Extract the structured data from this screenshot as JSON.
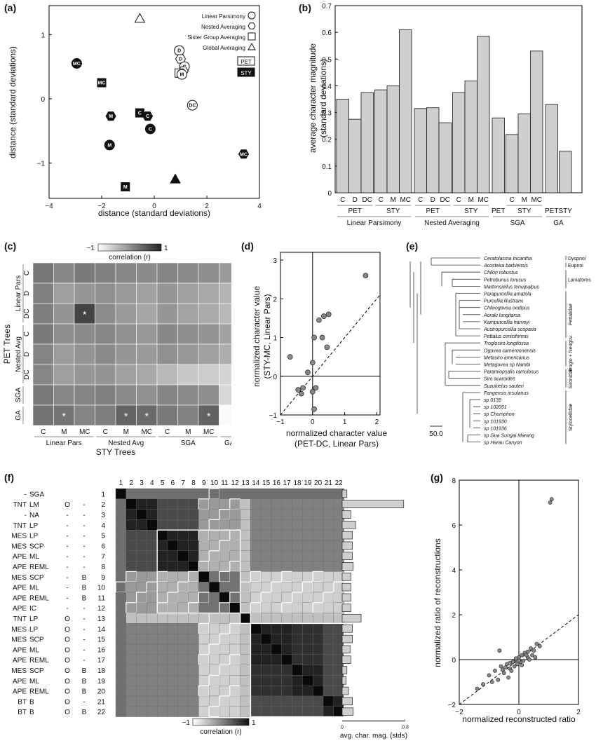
{
  "panels": {
    "a": {
      "label": "(a)",
      "xlabel": "distance (standard deviations)",
      "ylabel": "distance (standard deviations)",
      "xticks": [
        "−4",
        "−2",
        "0",
        "2",
        "4"
      ],
      "yticks": [
        "1",
        "0",
        "−1"
      ],
      "legend": [
        "Linear Parsimony",
        "Nested Averaging",
        "Sister Group Averaging",
        "Global Averaging"
      ],
      "box_labels": [
        "PET",
        "STY"
      ],
      "points": [
        {
          "x": -2.95,
          "y": 0.55,
          "shape": "circle",
          "fill": "black",
          "text": "MC"
        },
        {
          "x": -2.0,
          "y": 0.25,
          "shape": "square",
          "fill": "black",
          "text": "MC"
        },
        {
          "x": -1.65,
          "y": -0.27,
          "shape": "hex",
          "fill": "black",
          "text": "M"
        },
        {
          "x": -1.7,
          "y": -0.72,
          "shape": "circle",
          "fill": "black",
          "text": "M"
        },
        {
          "x": -1.1,
          "y": -1.37,
          "shape": "square",
          "fill": "black",
          "text": "M"
        },
        {
          "x": -0.55,
          "y": -0.22,
          "shape": "square",
          "fill": "black",
          "text": "C"
        },
        {
          "x": -0.25,
          "y": -0.27,
          "shape": "hex",
          "fill": "black",
          "text": "C"
        },
        {
          "x": -0.15,
          "y": -0.47,
          "shape": "circle",
          "fill": "black",
          "text": "C"
        },
        {
          "x": 3.4,
          "y": -0.86,
          "shape": "hex",
          "fill": "black",
          "text": "MC"
        },
        {
          "x": 0.8,
          "y": -1.25,
          "shape": "triangle",
          "fill": "black",
          "text": ""
        },
        {
          "x": -0.55,
          "y": 1.25,
          "shape": "triangle",
          "fill": "white",
          "text": ""
        },
        {
          "x": 0.95,
          "y": 0.75,
          "shape": "circle",
          "fill": "white",
          "text": "D"
        },
        {
          "x": 1.0,
          "y": 0.62,
          "shape": "hex",
          "fill": "white",
          "text": "D"
        },
        {
          "x": 1.15,
          "y": 0.5,
          "shape": "circle",
          "fill": "white",
          "text": "C"
        },
        {
          "x": 1.1,
          "y": 0.43,
          "shape": "hex",
          "fill": "white",
          "text": "C"
        },
        {
          "x": 0.95,
          "y": 0.4,
          "shape": "square",
          "fill": "white",
          "text": ""
        },
        {
          "x": 1.05,
          "y": 0.38,
          "shape": "circle",
          "fill": "white",
          "text": "M"
        },
        {
          "x": 1.45,
          "y": -0.1,
          "shape": "circle",
          "fill": "white",
          "text": "DC"
        }
      ]
    },
    "b": {
      "label": "(b)",
      "ylabel": "average character magnitude\n(standard deviations)",
      "yticks": [
        "0",
        "0.1",
        "0.2",
        "0.3",
        "0.4",
        "0.5",
        "0.6",
        "0.7"
      ],
      "chart_data": {
        "type": "bar",
        "categories": [
          "C",
          "D",
          "DC",
          "C",
          "M",
          "MC",
          "C",
          "D",
          "DC",
          "C",
          "M",
          "MC",
          "PET",
          "C",
          "M",
          "MC",
          "PET",
          "STY"
        ],
        "values": [
          0.35,
          0.275,
          0.375,
          0.385,
          0.4,
          0.61,
          0.315,
          0.318,
          0.262,
          0.375,
          0.418,
          0.585,
          0.28,
          0.218,
          0.295,
          0.53,
          0.33,
          0.155
        ],
        "ylim": [
          0,
          0.7
        ]
      },
      "group2": [
        {
          "label": "PET",
          "span": [
            0,
            2
          ]
        },
        {
          "label": "STY",
          "span": [
            3,
            5
          ]
        },
        {
          "label": "PET",
          "span": [
            6,
            8
          ]
        },
        {
          "label": "STY",
          "span": [
            9,
            11
          ]
        },
        {
          "label": "PET",
          "span": [
            12,
            12
          ]
        },
        {
          "label": "STY",
          "span": [
            13,
            15
          ]
        },
        {
          "label": "PET",
          "span": [
            16,
            16
          ]
        },
        {
          "label": "STY",
          "span": [
            17,
            17
          ]
        }
      ],
      "group1": [
        {
          "label": "Linear Parsimony",
          "span": [
            0,
            5
          ]
        },
        {
          "label": "Nested Averaging",
          "span": [
            6,
            11
          ]
        },
        {
          "label": "SGA",
          "span": [
            12,
            15
          ]
        },
        {
          "label": "GA",
          "span": [
            16,
            17
          ]
        }
      ]
    },
    "c": {
      "label": "(c)",
      "colorbar_min": "−1",
      "colorbar_max": "1",
      "colorbar_label": "correlation (r)",
      "row_sub": [
        "C",
        "D",
        "DC",
        "C",
        "D",
        "DC",
        "",
        ""
      ],
      "row_groups": [
        "Linear Pars",
        "Nested Avg",
        "SGA",
        "GA"
      ],
      "row_title": "PET Trees",
      "col_sub": [
        "C",
        "M",
        "MC",
        "C",
        "M",
        "MC",
        "C",
        "M",
        "MC",
        ""
      ],
      "col_groups": [
        "Linear Pars",
        "Nested Avg",
        "SGA",
        "GA"
      ],
      "col_title": "STY Trees"
    },
    "d": {
      "label": "(d)",
      "xlabel": "normalized character value",
      "xlabel2": "(PET-DC, Linear Pars)",
      "ylabel": "normalized character value",
      "ylabel2": "(STY-MC, Linear Pars)",
      "xticks": [
        "−1",
        "0",
        "1",
        "2"
      ],
      "yticks": [
        "−1",
        "0",
        "1",
        "2",
        "3"
      ],
      "chart_data": {
        "type": "scatter",
        "x": [
          1.65,
          0.5,
          0.35,
          0.2,
          0.05,
          0.3,
          0.45,
          -0.7,
          0.0,
          -0.15,
          -0.3,
          -0.45,
          0.0,
          0.1,
          -0.35,
          0.05
        ],
        "y": [
          2.6,
          1.6,
          1.55,
          1.45,
          1.0,
          1.0,
          0.75,
          0.5,
          0.35,
          0.1,
          -0.3,
          -0.35,
          -0.4,
          -0.3,
          -0.45,
          -0.85
        ],
        "xlim": [
          -1,
          2.1
        ],
        "ylim": [
          -1,
          3.2
        ]
      }
    },
    "e": {
      "label": "(e)",
      "scale": "50.0",
      "taxa": [
        "Ceratolasma tricantha",
        "Acosteira barbiensis",
        "Chilon robustus",
        "Petrobunus lorusus",
        "Martensiellus tenuipalpus",
        "Parapurcellia amatola",
        "Purcellia illustrans",
        "Chileogovea oedipus",
        "Aoraki longitarsa",
        "Karripurcellia harveyi",
        "Austropurcellia scoparia",
        "Pettalus cimiciformis",
        "Troglosiro longifossa",
        "Ogovea cameroonensis",
        "Metasiro americanus",
        "Metagovea sp Nambi",
        "Paramiopsalis ramulosus",
        "Siro acaroides",
        "Suzukielus sauteri",
        "Fangensis insulanus",
        "sp 0139",
        "sp 102051",
        "sp Chumphon",
        "sp 101930",
        "sp 101936",
        "sp Gua Sungai Marang",
        "sp Harau Canyon"
      ],
      "clades": [
        "Dyspnoi",
        "Eupnoi",
        "Laniatores",
        "Pettalidae",
        "Troglo +\nNeogov.",
        "Sironidae",
        "Stylocellidae"
      ]
    },
    "f": {
      "label": "(f)",
      "col_numbers": [
        "1",
        "2",
        "3",
        "4",
        "5",
        "6",
        "7",
        "8",
        "9",
        "10",
        "11",
        "12",
        "13",
        "14",
        "15",
        "16",
        "17",
        "18",
        "19",
        "20",
        "21",
        "22"
      ],
      "rows": [
        {
          "a": "-",
          "b": "SGA",
          "c": "",
          "d": "",
          "e": "",
          "n": "1",
          "bar": 0.06
        },
        {
          "a": "TNT",
          "b": "LM",
          "c": "O",
          "d": "-",
          "e": "",
          "n": "2",
          "bar": 0.78
        },
        {
          "a": "-",
          "b": "NA",
          "c": "-",
          "d": "-",
          "e": "",
          "n": "3",
          "bar": 0.11
        },
        {
          "a": "TNT",
          "b": "LP",
          "c": "-",
          "d": "-",
          "e": "",
          "n": "4",
          "bar": 0.17
        },
        {
          "a": "MES",
          "b": "LP",
          "c": "-",
          "d": "-",
          "e": "",
          "n": "5",
          "bar": 0.13
        },
        {
          "a": "MES",
          "b": "SCP",
          "c": "-",
          "d": "-",
          "e": "",
          "n": "6",
          "bar": 0.13
        },
        {
          "a": "APE",
          "b": "ML",
          "c": "-",
          "d": "-",
          "e": "",
          "n": "7",
          "bar": 0.13
        },
        {
          "a": "APE",
          "b": "REML",
          "c": "-",
          "d": "-",
          "e": "",
          "n": "8",
          "bar": 0.14
        },
        {
          "a": "MES",
          "b": "SCP",
          "c": "-",
          "d": "B",
          "e": "",
          "n": "9",
          "bar": 0.11
        },
        {
          "a": "APE",
          "b": "ML",
          "c": "-",
          "d": "B",
          "e": "",
          "n": "10",
          "bar": 0.11
        },
        {
          "a": "APE",
          "b": "REML",
          "c": "-",
          "d": "B",
          "e": "",
          "n": "11",
          "bar": 0.11
        },
        {
          "a": "APE",
          "b": "IC",
          "c": "-",
          "d": "-",
          "e": "",
          "n": "12",
          "bar": 0.11
        },
        {
          "a": "TNT",
          "b": "LP",
          "c": "O",
          "d": "-",
          "e": "",
          "n": "13",
          "bar": 0.24
        },
        {
          "a": "MES",
          "b": "LP",
          "c": "O",
          "d": "-",
          "e": "",
          "n": "14",
          "bar": 0.13
        },
        {
          "a": "MES",
          "b": "SCP",
          "c": "O",
          "d": "-",
          "e": "",
          "n": "15",
          "bar": 0.13
        },
        {
          "a": "APE",
          "b": "ML",
          "c": "O",
          "d": "-",
          "e": "",
          "n": "16",
          "bar": 0.1
        },
        {
          "a": "APE",
          "b": "REML",
          "c": "O",
          "d": "-",
          "e": "",
          "n": "17",
          "bar": 0.11
        },
        {
          "a": "MES",
          "b": "SCP",
          "c": "O",
          "d": "B",
          "e": "",
          "n": "18",
          "bar": 0.06
        },
        {
          "a": "APE",
          "b": "ML",
          "c": "O",
          "d": "B",
          "e": "",
          "n": "19",
          "bar": 0.05
        },
        {
          "a": "APE",
          "b": "REML",
          "c": "O",
          "d": "B",
          "e": "",
          "n": "20",
          "bar": 0.08
        },
        {
          "a": "BT",
          "b": "B",
          "c": "O",
          "d": "-",
          "e": "",
          "n": "21",
          "bar": 0.13
        },
        {
          "a": "BT",
          "b": "B",
          "c": "O",
          "d": "B",
          "e": "",
          "n": "22",
          "bar": 0.14
        }
      ],
      "bar_ticks": [
        "0",
        "0.8"
      ],
      "bar_label": "avg. char. mag. (stds)",
      "colorbar_min": "−1",
      "colorbar_max": "1",
      "colorbar_label": "correlation (r)"
    },
    "g": {
      "label": "(g)",
      "xlabel": "normalized reconstructed ratio",
      "ylabel": "normalized ratio of reconstructions",
      "xticks": [
        "−2",
        "0",
        "2"
      ],
      "yticks": [
        "−2",
        "0",
        "2",
        "4",
        "6",
        "8"
      ],
      "chart_data": {
        "type": "scatter",
        "x": [
          1.05,
          1.1,
          -1.0,
          -0.8,
          -0.6,
          -0.5,
          -0.4,
          -0.3,
          -0.2,
          -0.1,
          0.0,
          0.1,
          0.2,
          0.3,
          0.4,
          0.5,
          0.6,
          -0.7,
          -0.55,
          -0.35,
          -0.25,
          -0.15,
          0.05,
          0.15,
          0.25,
          0.35,
          -0.45,
          -0.05,
          0.45,
          0.55,
          -0.9,
          -1.2,
          -1.4,
          -0.65,
          0.7,
          -0.3,
          0.1,
          0.3,
          -0.1,
          0.0
        ],
        "y": [
          7.0,
          7.15,
          -0.7,
          -0.5,
          -0.3,
          -0.6,
          -0.2,
          -0.4,
          -0.1,
          0.0,
          0.1,
          0.2,
          0.3,
          0.1,
          0.5,
          0.4,
          0.7,
          -0.9,
          -0.45,
          -0.8,
          -0.5,
          -0.3,
          -0.1,
          -0.05,
          0.2,
          0.0,
          -0.35,
          -0.2,
          0.2,
          0.1,
          -1.0,
          -1.1,
          -1.3,
          0.4,
          0.6,
          -0.15,
          -0.25,
          0.35,
          0.05,
          -0.05
        ],
        "xlim": [
          -2,
          2
        ],
        "ylim": [
          -2,
          8
        ]
      }
    }
  }
}
